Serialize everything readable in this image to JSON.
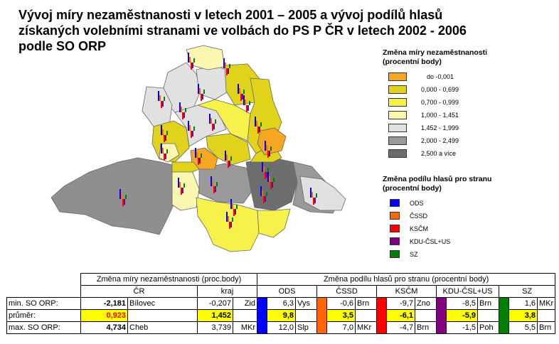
{
  "title": {
    "line1": "Vývoj míry nezaměstnanosti v letech 2001 – 2005 a vývoj podílů hlasů",
    "line2": "získaných volebními stranami ve volbách do PS P ČR v letech 2002 - 2006",
    "line3": "podle SO ORP"
  },
  "legend_unemployment": {
    "title_line1": "Změna míry nezaměstnanosti",
    "title_line2": "(procentní body)",
    "items": [
      {
        "label": "do -0,001",
        "color": "#f5a623"
      },
      {
        "label": "0,000 - 0,699",
        "color": "#e1d31a"
      },
      {
        "label": "0,700 - 0,999",
        "color": "#f7f24a"
      },
      {
        "label": "1,000 - 1,451",
        "color": "#fbf6b0"
      },
      {
        "label": "1,452 - 1,999",
        "color": "#e1e1e1"
      },
      {
        "label": "2,000 - 2,499",
        "color": "#999999"
      },
      {
        "label": "2,500 a více",
        "color": "#6e6e6e"
      }
    ]
  },
  "legend_parties": {
    "title_line1": "Změna podílu hlasů pro stranu",
    "title_line2": "(procentní body)",
    "items": [
      {
        "label": "ODS",
        "color": "#0000ff"
      },
      {
        "label": "ČSSD",
        "color": "#ff6600"
      },
      {
        "label": "KSČM",
        "color": "#ff0000"
      },
      {
        "label": "KDU-ČSL+US",
        "color": "#800080"
      },
      {
        "label": "SZ",
        "color": "#008000"
      }
    ]
  },
  "table": {
    "header1_left": "Změna míry nezaměstnanosti (proc.body)",
    "header1_right": "Změna podílu hlasů pro stranu (procentní body)",
    "header2": [
      "ČR",
      "kraj",
      "ODS",
      "ČSSD",
      "KSČM",
      "KDU-ČSL+US",
      "SZ"
    ],
    "rows": [
      {
        "label": "min. SO ORP:",
        "cr": "-2,181",
        "cr_place": "Bílovec",
        "kraj": "-0,207",
        "kraj_place": "Zid",
        "ods": "6,3",
        "ods_p": "Vys",
        "cssd": "-0,6",
        "cssd_p": "Brn",
        "kscm": "-9,7",
        "kscm_p": "Zno",
        "kdu": "-8,5",
        "kdu_p": "Brn",
        "sz": "1,6",
        "sz_p": "MKr"
      },
      {
        "label": "průměr:",
        "cr": "0,923",
        "kraj": "1,452",
        "ods": "9,8",
        "cssd": "3,5",
        "kscm": "-6,1",
        "kdu": "-5,9",
        "sz": "3,8"
      },
      {
        "label": "max. SO ORP:",
        "cr": "4,734",
        "cr_place": "Cheb",
        "kraj": "3,739",
        "kraj_place": "MKr",
        "ods": "12,0",
        "ods_p": "Slp",
        "cssd": "7,0",
        "cssd_p": "MKr",
        "kscm": "-4,7",
        "kscm_p": "Brn",
        "kdu": "-1,5",
        "kdu_p": "Poh",
        "sz": "5,5",
        "sz_p": "Brn"
      }
    ]
  }
}
